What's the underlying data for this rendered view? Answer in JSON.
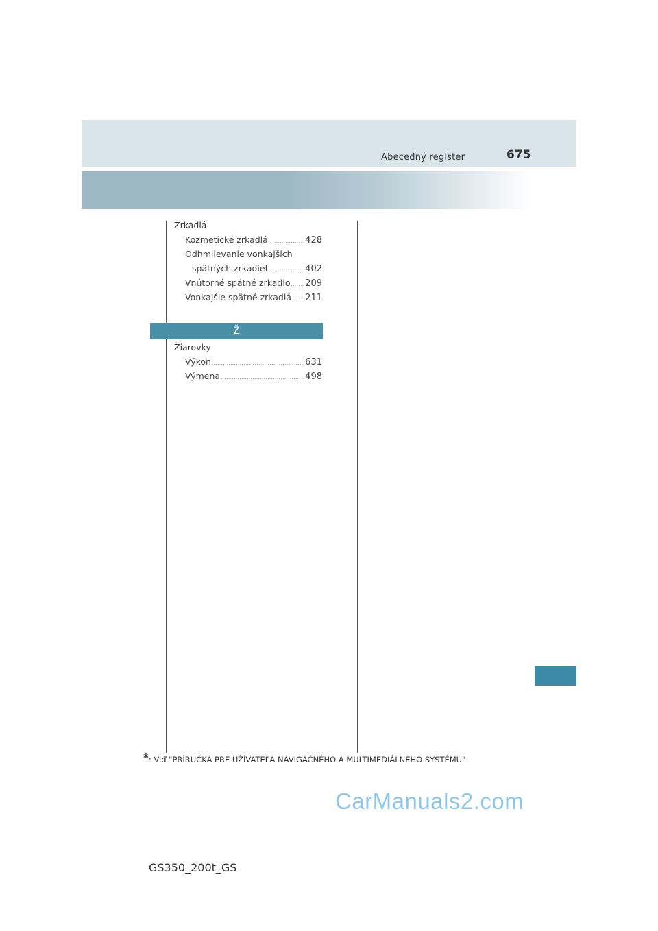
{
  "header": {
    "title": "Abecedný register",
    "page_number": "675"
  },
  "section_z": {
    "heading": "Zrkadlá",
    "items": [
      {
        "label": "Kozmetické zrkadlá",
        "dots": "................................................",
        "page": "428"
      },
      {
        "label": "Odhmlievanie vonkajších",
        "dots": "",
        "page": ""
      },
      {
        "label": "spätných zrkadiel",
        "dots": "................................................",
        "page": "402"
      },
      {
        "label": "Vnútorné spätné zrkadlo",
        "dots": "................................................",
        "page": "209"
      },
      {
        "label": "Vonkajšie spätné zrkadlá",
        "dots": "................................................",
        "page": "211"
      }
    ]
  },
  "letter_bar": "Ž",
  "section_zh": {
    "heading": "Žiarovky",
    "items": [
      {
        "label": "Výkon",
        "dots": "....................................................................................",
        "page": "631"
      },
      {
        "label": "Výmena",
        "dots": "....................................................................................",
        "page": "498"
      }
    ]
  },
  "footnote": {
    "star": "*",
    "text": ": Viď \"PRÍRUČKA PRE UŽÍVATEĽA NAVIGAČNÉHO A MULTIMEDIÁLNEHO SYSTÉMU\"."
  },
  "watermark": "CarManuals2.com",
  "model_code": "GS350_200t_GS"
}
